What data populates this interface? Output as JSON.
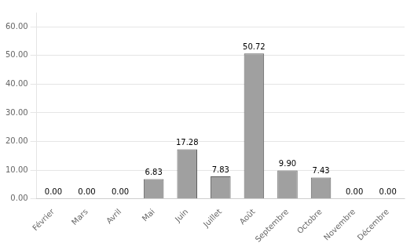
{
  "chart_data": {
    "type": "bar",
    "categories": [
      "Février",
      "Mars",
      "Avril",
      "Mai",
      "Juin",
      "Juillet",
      "Août",
      "Septembre",
      "Octobre",
      "Novembre",
      "Décembre"
    ],
    "values": [
      0.0,
      0.0,
      0.0,
      6.83,
      17.28,
      7.83,
      50.72,
      9.9,
      7.43,
      0.0,
      0.0
    ],
    "value_labels": [
      "0.00",
      "0.00",
      "0.00",
      "6.83",
      "17.28",
      "7.83",
      "50.72",
      "9.90",
      "7.43",
      "0.00",
      "0.00"
    ],
    "data_labels": true,
    "color": "#a0a0a0",
    "ylim": [
      0,
      65
    ],
    "yticks": [
      {
        "value": 0,
        "label": "0.00"
      },
      {
        "value": 10,
        "label": "10.00"
      },
      {
        "value": 20,
        "label": "20.00"
      },
      {
        "value": 30,
        "label": "30.00"
      },
      {
        "value": 40,
        "label": "40.00"
      },
      {
        "value": 50,
        "label": "50.00"
      },
      {
        "value": 60,
        "label": "60.00"
      }
    ],
    "grid": true
  }
}
